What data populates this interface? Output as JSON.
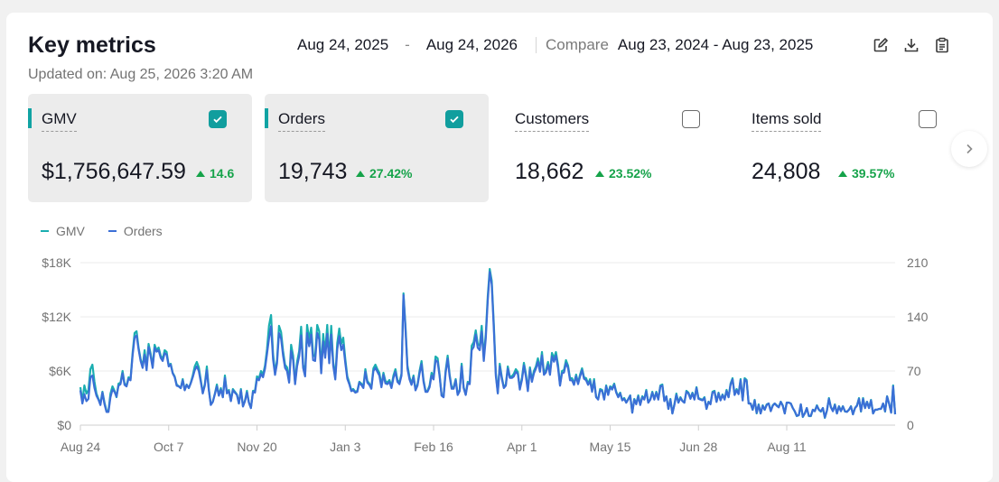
{
  "header": {
    "title": "Key metrics",
    "updated": "Updated on: Aug 25, 2026 3:20 AM",
    "range_start": "Aug 24, 2025",
    "range_sep": "-",
    "range_end": "Aug 24, 2026",
    "compare_label": "Compare",
    "compare_range": "Aug 23, 2024 - Aug 23, 2025"
  },
  "toolbar": {
    "icons": [
      "edit-icon",
      "download-icon",
      "clipboard-icon"
    ]
  },
  "metrics": [
    {
      "label": "GMV",
      "value": "$1,756,647.59",
      "change": "14.6",
      "checked": true,
      "active": true
    },
    {
      "label": "Orders",
      "value": "19,743",
      "change": "27.42%",
      "checked": true,
      "active": true
    },
    {
      "label": "Customers",
      "value": "18,662",
      "change": "23.52%",
      "checked": false,
      "active": false
    },
    {
      "label": "Items sold",
      "value": "24,808",
      "change": "39.57%",
      "checked": false,
      "active": false
    }
  ],
  "colors": {
    "accent": "#11a3a3",
    "gmv_line": "#1aaeb0",
    "orders_line": "#3b6fd6",
    "positive": "#16a34a"
  },
  "chart_data": {
    "type": "line",
    "legend": [
      "GMV",
      "Orders"
    ],
    "legend_position": "top-left",
    "grid": true,
    "x_ticks": [
      "Aug 24",
      "Oct 7",
      "Nov 20",
      "Jan 3",
      "Feb 16",
      "Apr 1",
      "May 15",
      "Jun 28",
      "Aug 11"
    ],
    "x_tick_day_index": [
      0,
      44,
      88,
      132,
      176,
      220,
      264,
      308,
      352
    ],
    "y_left": {
      "ticks": [
        "$0",
        "$6K",
        "$12K",
        "$18K"
      ],
      "values": [
        0,
        6000,
        12000,
        18000
      ],
      "ylim": [
        0,
        18000
      ]
    },
    "y_right": {
      "ticks": [
        "0",
        "70",
        "140",
        "210"
      ],
      "values": [
        0,
        70,
        140,
        210
      ],
      "ylim": [
        0,
        210
      ]
    },
    "series": [
      {
        "name": "GMV",
        "axis": "left",
        "values": [
          4200,
          2600,
          4400,
          3500,
          3900,
          6200,
          6700,
          4800,
          3500,
          2900,
          2400,
          3700,
          2500,
          1600,
          1600,
          3500,
          4300,
          3800,
          3100,
          4600,
          4700,
          6000,
          4600,
          4400,
          5300,
          5100,
          8000,
          10200,
          10400,
          8600,
          7300,
          6500,
          8300,
          6400,
          9000,
          7900,
          6500,
          8900,
          8300,
          8600,
          7700,
          7300,
          8300,
          8100,
          6600,
          6800,
          5800,
          5400,
          4500,
          4300,
          4100,
          5100,
          3900,
          4500,
          4100,
          4700,
          5500,
          6500,
          7000,
          6400,
          5000,
          3600,
          4500,
          6500,
          4000,
          2300,
          2600,
          3500,
          4500,
          3300,
          4100,
          3100,
          5500,
          3600,
          3900,
          2700,
          4000,
          3700,
          3400,
          2400,
          4000,
          2100,
          2700,
          3800,
          2500,
          1900,
          3800,
          3800,
          5400,
          5200,
          6000,
          5600,
          6600,
          8400,
          11000,
          12200,
          7900,
          5800,
          7200,
          11000,
          10300,
          8200,
          6700,
          6400,
          4900,
          8900,
          7700,
          4700,
          7000,
          8200,
          10900,
          6700,
          5700,
          11100,
          9500,
          10800,
          7800,
          7600,
          11100,
          10400,
          6100,
          10100,
          8000,
          11100,
          7300,
          11000,
          7000,
          5300,
          9100,
          10700,
          9000,
          9700,
          7300,
          5400,
          4700,
          3900,
          4000,
          3700,
          3800,
          4800,
          4600,
          4300,
          6200,
          4900,
          4600,
          4100,
          6300,
          6700,
          6200,
          5800,
          4400,
          5800,
          4900,
          4700,
          5000,
          4300,
          5500,
          6200,
          5000,
          4700,
          5700,
          14600,
          11000,
          6600,
          5300,
          4600,
          5500,
          4000,
          4500,
          6000,
          7100,
          5000,
          3800,
          3800,
          4400,
          5800,
          5300,
          7600,
          7400,
          5600,
          3300,
          3200,
          6000,
          7700,
          5600,
          4200,
          4200,
          5100,
          3400,
          3900,
          6800,
          4200,
          3400,
          4800,
          4700,
          8800,
          9200,
          10500,
          9000,
          8800,
          11000,
          7500,
          10100,
          14300,
          17300,
          16000,
          11200,
          5800,
          3600,
          6800,
          5300,
          4200,
          4500,
          6500,
          5400,
          5400,
          5700,
          6200,
          5900,
          4100,
          5200,
          6900,
          5700,
          3900,
          6400,
          5000,
          6000,
          6500,
          7400,
          6200,
          8100,
          5800,
          6100,
          7000,
          5800,
          8000,
          7400,
          8100,
          6700,
          4500,
          6000,
          6100,
          7200,
          6600,
          5200,
          5200,
          4600,
          5600,
          4700,
          5600,
          6300,
          5300,
          5200,
          4600,
          5100,
          3800,
          5100,
          3100,
          2900,
          4000,
          3900,
          2900,
          4400,
          3500,
          4300,
          4100,
          4600,
          3700,
          3200,
          3600,
          2800,
          3000,
          2500,
          2900,
          3300,
          1400,
          2900,
          2400,
          3300,
          2300,
          3200,
          2900,
          3900,
          2500,
          2900,
          3700,
          2900,
          3700,
          2900,
          4400,
          4500,
          2700,
          3200,
          1800,
          2900,
          1300,
          2300,
          3500,
          2500,
          3100,
          2700,
          2500,
          3800,
          3600,
          3000,
          3600,
          2900,
          4200,
          3000,
          2900,
          2800,
          3100,
          1800,
          2600,
          2400,
          3700,
          3800,
          2600,
          3600,
          2800,
          3400,
          2900,
          3900,
          3100,
          4600,
          5200,
          3400,
          4000,
          3500,
          5100,
          2800,
          5200,
          5000,
          2400,
          2400,
          1700,
          2800,
          1300,
          2300,
          1300,
          2200,
          1700,
          2300,
          2400,
          1600,
          2200,
          2400,
          2200,
          2000,
          2600,
          2200,
          1300,
          2500,
          2500,
          2400,
          1900,
          1500,
          1000,
          1100,
          2300,
          900,
          1300,
          1900,
          1000,
          1000,
          1700,
          1600,
          2200,
          1700,
          1500,
          1900,
          800,
          1600,
          3000,
          2000,
          1600,
          2300,
          1300,
          2100,
          1600,
          2100,
          1500,
          1500,
          1700,
          2100,
          1200,
          1900,
          2200,
          3000,
          1500,
          3000,
          1900,
          2600,
          1900,
          2800,
          1300,
          1700,
          1700,
          1800,
          1800,
          2400,
          1500,
          3200,
          2400,
          1400,
          4400,
          1200
        ]
      },
      {
        "name": "Orders",
        "axis": "right",
        "values": [
          45,
          28,
          40,
          31,
          34,
          62,
          64,
          48,
          38,
          33,
          26,
          42,
          27,
          17,
          17,
          36,
          46,
          43,
          37,
          51,
          53,
          67,
          52,
          50,
          60,
          58,
          90,
          113,
          116,
          98,
          83,
          74,
          91,
          71,
          101,
          89,
          74,
          100,
          95,
          97,
          87,
          83,
          93,
          91,
          76,
          78,
          67,
          62,
          51,
          50,
          48,
          58,
          45,
          52,
          48,
          54,
          62,
          71,
          76,
          70,
          56,
          41,
          51,
          71,
          45,
          26,
          30,
          40,
          50,
          38,
          46,
          36,
          61,
          41,
          44,
          31,
          45,
          42,
          39,
          28,
          45,
          24,
          31,
          42,
          29,
          22,
          43,
          42,
          60,
          58,
          66,
          62,
          73,
          92,
          112,
          128,
          85,
          65,
          80,
          119,
          112,
          90,
          74,
          70,
          55,
          96,
          84,
          53,
          76,
          89,
          116,
          74,
          63,
          119,
          102,
          117,
          84,
          83,
          119,
          111,
          67,
          108,
          87,
          118,
          80,
          117,
          77,
          59,
          98,
          115,
          97,
          104,
          80,
          60,
          53,
          44,
          45,
          42,
          43,
          55,
          52,
          48,
          69,
          55,
          52,
          47,
          70,
          74,
          69,
          64,
          49,
          65,
          54,
          53,
          56,
          48,
          61,
          69,
          56,
          53,
          64,
          168,
          124,
          73,
          59,
          52,
          62,
          45,
          51,
          67,
          79,
          56,
          43,
          43,
          49,
          64,
          59,
          84,
          82,
          63,
          38,
          36,
          67,
          86,
          63,
          47,
          47,
          58,
          39,
          44,
          76,
          48,
          39,
          54,
          53,
          97,
          101,
          117,
          100,
          97,
          121,
          83,
          112,
          161,
          198,
          182,
          125,
          64,
          41,
          76,
          60,
          48,
          51,
          73,
          61,
          61,
          63,
          69,
          66,
          46,
          58,
          77,
          63,
          44,
          72,
          56,
          67,
          73,
          82,
          69,
          90,
          65,
          68,
          78,
          65,
          89,
          82,
          90,
          74,
          51,
          67,
          68,
          80,
          74,
          58,
          58,
          52,
          63,
          53,
          63,
          71,
          60,
          58,
          52,
          57,
          43,
          57,
          36,
          33,
          45,
          44,
          33,
          50,
          39,
          49,
          46,
          52,
          42,
          36,
          41,
          32,
          34,
          29,
          33,
          38,
          16,
          33,
          27,
          37,
          26,
          36,
          33,
          44,
          29,
          33,
          42,
          33,
          42,
          33,
          50,
          51,
          31,
          37,
          21,
          33,
          15,
          26,
          39,
          29,
          35,
          31,
          29,
          43,
          41,
          34,
          41,
          33,
          48,
          34,
          33,
          32,
          35,
          21,
          30,
          27,
          42,
          43,
          30,
          41,
          32,
          39,
          33,
          44,
          36,
          52,
          59,
          39,
          45,
          40,
          58,
          32,
          59,
          57,
          28,
          28,
          20,
          32,
          16,
          26,
          15,
          25,
          20,
          26,
          28,
          18,
          25,
          28,
          25,
          23,
          30,
          25,
          15,
          29,
          29,
          28,
          22,
          18,
          12,
          13,
          27,
          11,
          15,
          22,
          12,
          12,
          20,
          18,
          25,
          20,
          18,
          22,
          10,
          19,
          34,
          23,
          18,
          26,
          15,
          24,
          18,
          24,
          18,
          17,
          20,
          24,
          14,
          22,
          25,
          34,
          18,
          34,
          22,
          30,
          22,
          32,
          15,
          20,
          20,
          21,
          21,
          28,
          18,
          37,
          28,
          16,
          50,
          14
        ]
      }
    ]
  }
}
